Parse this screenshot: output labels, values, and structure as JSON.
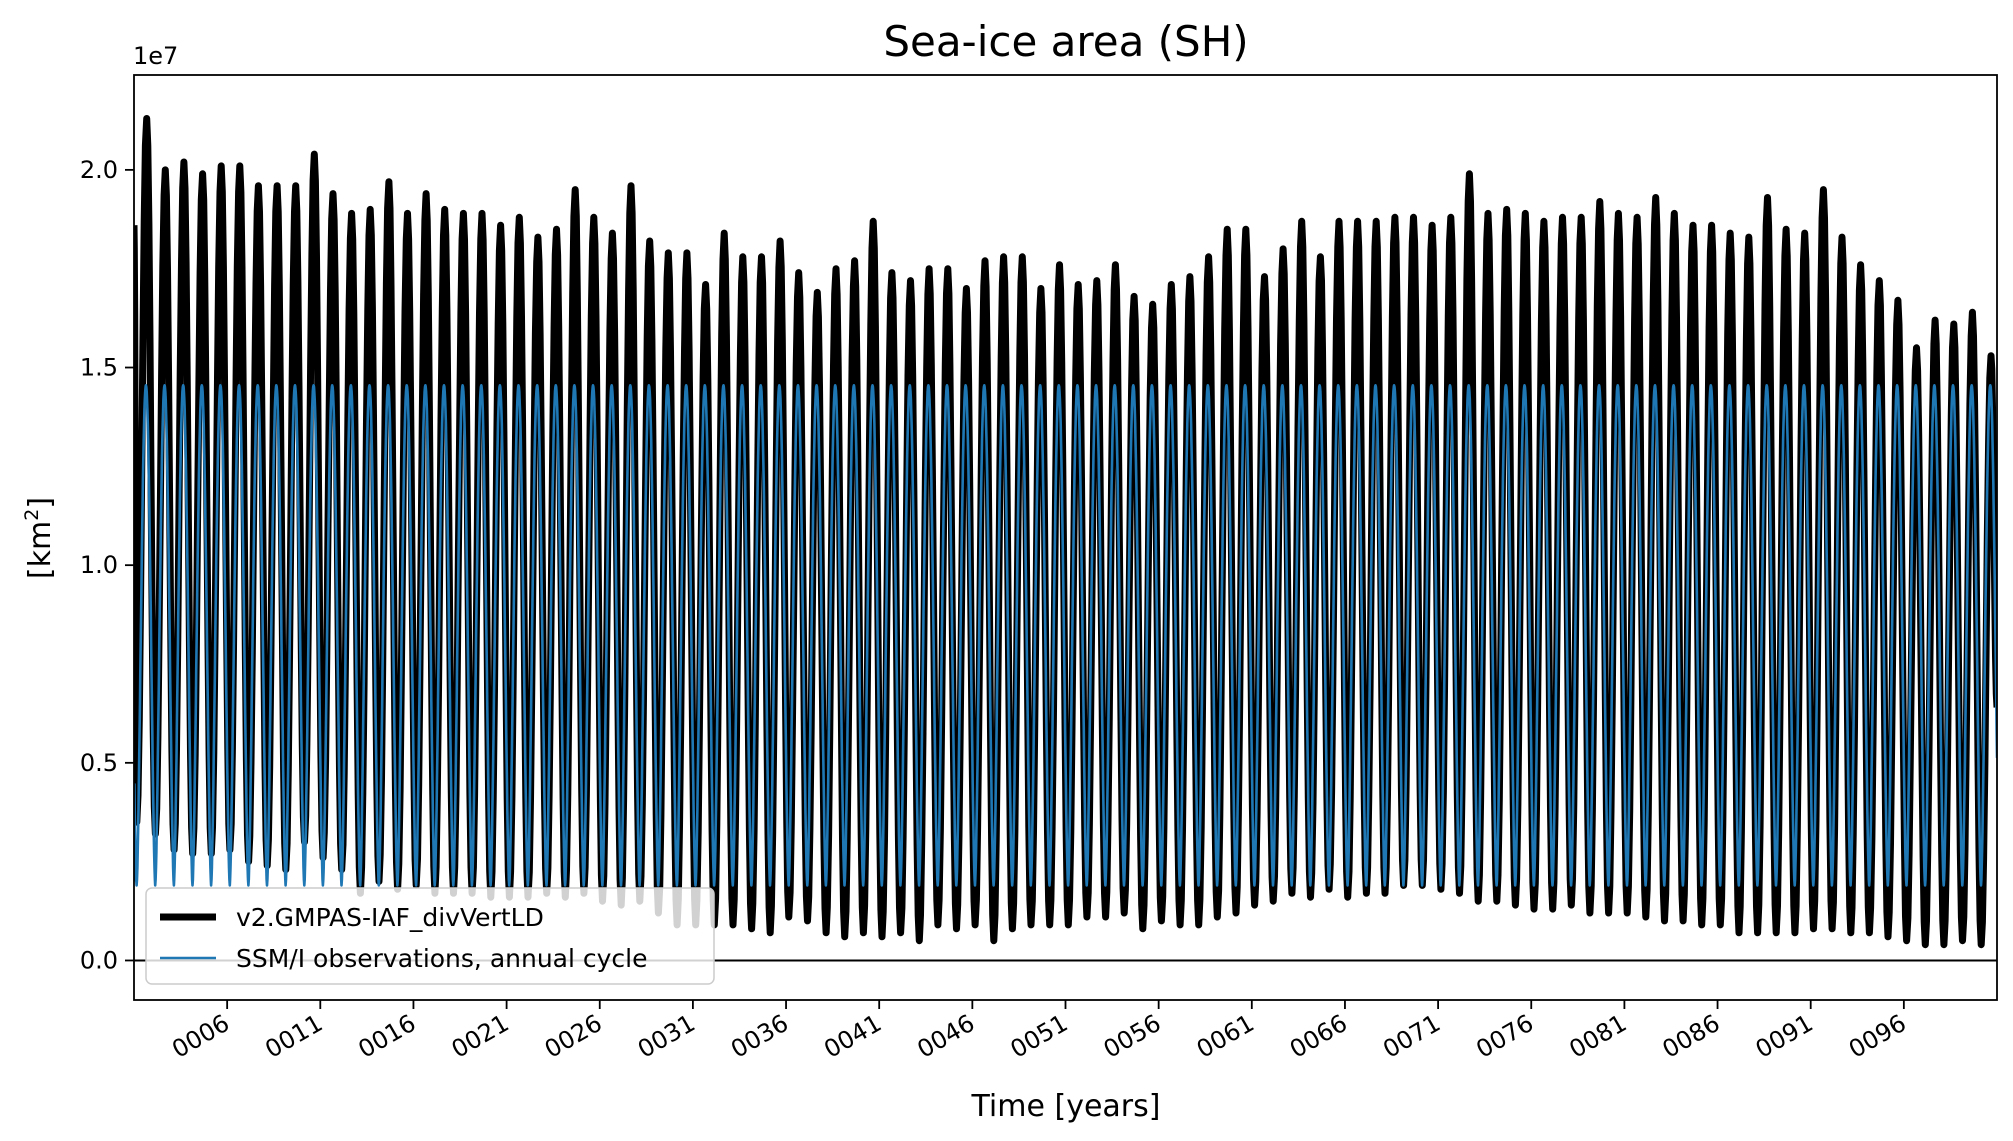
{
  "chart_data": {
    "type": "line",
    "title": "Sea-ice area (SH)",
    "xlabel": "Time [years]",
    "ylabel_main": "[km",
    "ylabel_sup": "2",
    "ylabel_close": "]",
    "y_offset_label": "1e7",
    "y_scale": 10000000,
    "xlim": [
      1.0,
      101.0
    ],
    "ylim": [
      -0.1,
      2.24
    ],
    "x_ticks": [
      6,
      11,
      16,
      21,
      26,
      31,
      36,
      41,
      46,
      51,
      56,
      61,
      66,
      71,
      76,
      81,
      86,
      91,
      96
    ],
    "x_tick_labels": [
      "0006",
      "0011",
      "0016",
      "0021",
      "0026",
      "0031",
      "0036",
      "0041",
      "0046",
      "0051",
      "0056",
      "0061",
      "0066",
      "0071",
      "0076",
      "0081",
      "0086",
      "0091",
      "0096"
    ],
    "y_ticks": [
      0.0,
      0.5,
      1.0,
      1.5,
      2.0
    ],
    "y_tick_labels": [
      "0.0",
      "0.5",
      "1.0",
      "1.5",
      "2.0"
    ],
    "zero_line": true,
    "legend_position": "lower-left",
    "series": [
      {
        "name": "v2.GMPAS-IAF_divVertLD",
        "color": "#000000",
        "style": "thick",
        "annual_max": [
          2.13,
          2.0,
          2.02,
          1.99,
          2.01,
          2.01,
          1.96,
          1.96,
          1.96,
          2.04,
          1.94,
          1.89,
          1.9,
          1.97,
          1.89,
          1.94,
          1.9,
          1.89,
          1.89,
          1.86,
          1.88,
          1.83,
          1.85,
          1.95,
          1.88,
          1.84,
          1.96,
          1.82,
          1.79,
          1.79,
          1.71,
          1.84,
          1.78,
          1.78,
          1.82,
          1.74,
          1.69,
          1.75,
          1.77,
          1.87,
          1.74,
          1.72,
          1.75,
          1.75,
          1.7,
          1.77,
          1.78,
          1.78,
          1.7,
          1.76,
          1.71,
          1.72,
          1.76,
          1.68,
          1.66,
          1.71,
          1.73,
          1.78,
          1.85,
          1.85,
          1.73,
          1.8,
          1.87,
          1.78,
          1.87,
          1.87,
          1.87,
          1.88,
          1.88,
          1.86,
          1.88,
          1.99,
          1.89,
          1.9,
          1.89,
          1.87,
          1.88,
          1.88,
          1.92,
          1.89,
          1.88,
          1.93,
          1.89,
          1.86,
          1.86,
          1.84,
          1.83,
          1.93,
          1.85,
          1.84,
          1.95,
          1.83,
          1.76,
          1.72,
          1.67,
          1.55,
          1.62,
          1.61,
          1.64,
          1.53
        ],
        "annual_min": [
          0.35,
          0.32,
          0.28,
          0.27,
          0.27,
          0.28,
          0.25,
          0.24,
          0.23,
          0.3,
          0.26,
          0.23,
          0.17,
          0.2,
          0.18,
          0.19,
          0.17,
          0.17,
          0.17,
          0.16,
          0.16,
          0.16,
          0.17,
          0.16,
          0.17,
          0.15,
          0.14,
          0.15,
          0.12,
          0.09,
          0.09,
          0.09,
          0.09,
          0.08,
          0.07,
          0.11,
          0.1,
          0.07,
          0.06,
          0.07,
          0.06,
          0.07,
          0.05,
          0.09,
          0.08,
          0.09,
          0.05,
          0.08,
          0.09,
          0.09,
          0.09,
          0.11,
          0.11,
          0.12,
          0.08,
          0.1,
          0.09,
          0.09,
          0.11,
          0.12,
          0.14,
          0.15,
          0.17,
          0.16,
          0.18,
          0.16,
          0.17,
          0.17,
          0.19,
          0.19,
          0.18,
          0.17,
          0.15,
          0.15,
          0.14,
          0.13,
          0.13,
          0.14,
          0.12,
          0.12,
          0.12,
          0.11,
          0.1,
          0.1,
          0.09,
          0.09,
          0.07,
          0.07,
          0.07,
          0.07,
          0.08,
          0.08,
          0.07,
          0.07,
          0.06,
          0.05,
          0.04,
          0.04,
          0.05,
          0.04
        ],
        "start_value": 1.86,
        "end_value": 0.64
      },
      {
        "name": "SSM/I observations, annual cycle",
        "color": "#1f77b4",
        "style": "thin",
        "annual_max": 1.455,
        "annual_min": 0.19,
        "start_value": 0.2
      }
    ]
  }
}
